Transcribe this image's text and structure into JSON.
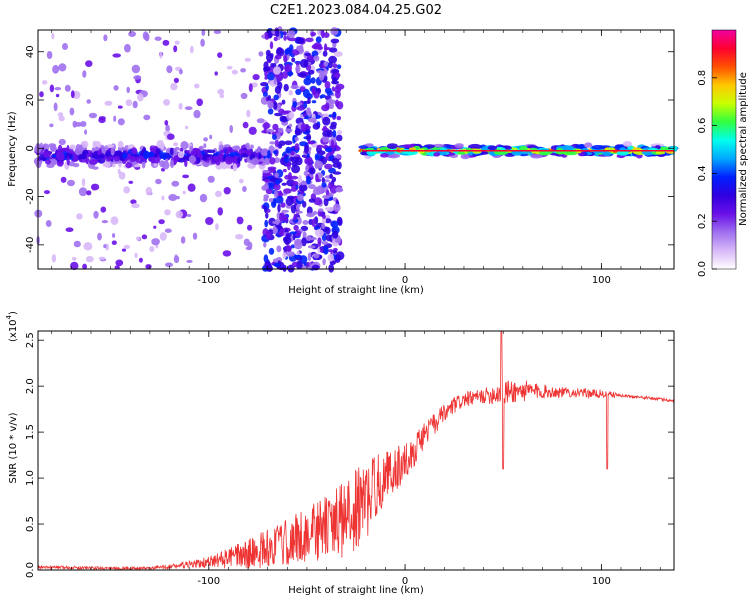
{
  "title": "C2E1.2023.084.04.25.G02",
  "colors": {
    "snr_line": "#ee3333",
    "colormap": [
      "#ffffff",
      "#d8b8f8",
      "#a070f0",
      "#6a10e8",
      "#3000e0",
      "#0020ff",
      "#00a8ff",
      "#00ffee",
      "#30ff40",
      "#c8ff00",
      "#ffc800",
      "#ff5000",
      "#ff0030",
      "#f000a0"
    ]
  },
  "chart_data": [
    {
      "type": "heatmap",
      "title": "C2E1.2023.084.04.25.G02",
      "xlabel": "Height of straight line (km)",
      "ylabel": "Frequency (Hz)",
      "xlim": [
        -187,
        137
      ],
      "ylim": [
        -50,
        49
      ],
      "xticks": [
        -100,
        0,
        100
      ],
      "yticks": [
        -40,
        -20,
        0,
        20,
        40
      ],
      "colorbar": {
        "label": "Normalized spectral amplitude",
        "range": [
          0.0,
          1.0
        ],
        "ticks": [
          "0.0",
          "0.2",
          "0.4",
          "0.6",
          "0.8"
        ]
      },
      "regions": [
        {
          "x": [
            -187,
            -72
          ],
          "freq_center": -3,
          "freq_halfwidth": 6,
          "peak": 0.45,
          "note": "noisy band with sparse scatter"
        },
        {
          "x": [
            -72,
            -33
          ],
          "freq_center": 0,
          "freq_halfwidth": 50,
          "peak": 0.3,
          "note": "broadband noise"
        },
        {
          "x": [
            -22,
            137
          ],
          "freq_center": -1,
          "freq_halfwidth": 3,
          "peak": 0.95,
          "note": "strong narrow carrier line"
        }
      ]
    },
    {
      "type": "line",
      "title": "",
      "xlabel": "Height of straight line (km)",
      "ylabel": "SNR (10 * v/v)",
      "yscale_label": "(x10",
      "yscale_exp": "4",
      "xlim": [
        -187,
        137
      ],
      "ylim": [
        0.0,
        2.6
      ],
      "xticks": [
        -100,
        0,
        100
      ],
      "yticks": [
        "0.0",
        "0.5",
        "1.0",
        "1.5",
        "2.0",
        "2.5"
      ],
      "series": [
        {
          "name": "",
          "x": [
            -187,
            -170,
            -150,
            -130,
            -120,
            -110,
            -100,
            -90,
            -80,
            -70,
            -60,
            -50,
            -40,
            -30,
            -25,
            -20,
            -15,
            -10,
            -5,
            0,
            5,
            10,
            15,
            20,
            25,
            30,
            40,
            50,
            60,
            70,
            80,
            90,
            100,
            110,
            120,
            130,
            137
          ],
          "y": [
            0.03,
            0.03,
            0.02,
            0.02,
            0.04,
            0.06,
            0.09,
            0.14,
            0.19,
            0.26,
            0.32,
            0.42,
            0.5,
            0.6,
            0.7,
            0.78,
            0.95,
            1.05,
            1.12,
            1.2,
            1.32,
            1.5,
            1.6,
            1.7,
            1.8,
            1.86,
            1.9,
            1.95,
            1.96,
            1.95,
            1.94,
            1.93,
            1.92,
            1.9,
            1.88,
            1.86,
            1.84
          ],
          "noise": [
            0.02,
            0.02,
            0.02,
            0.02,
            0.03,
            0.05,
            0.08,
            0.14,
            0.2,
            0.28,
            0.32,
            0.4,
            0.45,
            0.52,
            0.55,
            0.55,
            0.45,
            0.35,
            0.3,
            0.25,
            0.22,
            0.18,
            0.16,
            0.14,
            0.12,
            0.1,
            0.1,
            0.18,
            0.15,
            0.1,
            0.07,
            0.06,
            0.06,
            0.02,
            0.02,
            0.02,
            0.02
          ]
        }
      ],
      "annotations": [
        {
          "x": 49,
          "y": 2.6,
          "note": "spike"
        },
        {
          "x": 50,
          "y": 1.1,
          "note": "dip"
        },
        {
          "x": 103,
          "y": 1.1,
          "note": "dip"
        }
      ]
    }
  ]
}
